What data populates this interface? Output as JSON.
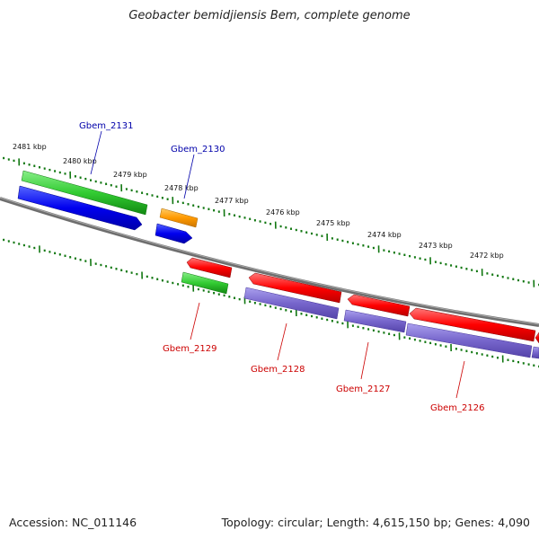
{
  "title": "Geobacter bemidjiensis Bem, complete genome",
  "footer": {
    "accession": "Accession: NC_011146",
    "stats": "Topology: circular; Length: 4,615,150 bp; Genes: 4,090"
  },
  "scale_labels": [
    "2481 kbp",
    "2480 kbp",
    "2479 kbp",
    "2478 kbp",
    "2477 kbp",
    "2476 kbp",
    "2475 kbp",
    "2474 kbp",
    "2473 kbp",
    "2472 kbp"
  ],
  "gene_labels": [
    {
      "name": "Gbem_2131",
      "strand": "forward",
      "color": "#0000aa"
    },
    {
      "name": "Gbem_2130",
      "strand": "forward",
      "color": "#0000aa"
    },
    {
      "name": "Gbem_2129",
      "strand": "reverse",
      "color": "#cc0000"
    },
    {
      "name": "Gbem_2128",
      "strand": "reverse",
      "color": "#cc0000"
    },
    {
      "name": "Gbem_2127",
      "strand": "reverse",
      "color": "#cc0000"
    },
    {
      "name": "Gbem_2126",
      "strand": "reverse",
      "color": "#cc0000"
    }
  ],
  "colors": {
    "cds_forward": "#0000ee",
    "cds_reverse": "#ff0000",
    "gene": "#33cc33",
    "rna_gene": "#ff9900",
    "protein": "#7766cc",
    "backbone": "#808080",
    "scale_ticks": "#117711"
  }
}
